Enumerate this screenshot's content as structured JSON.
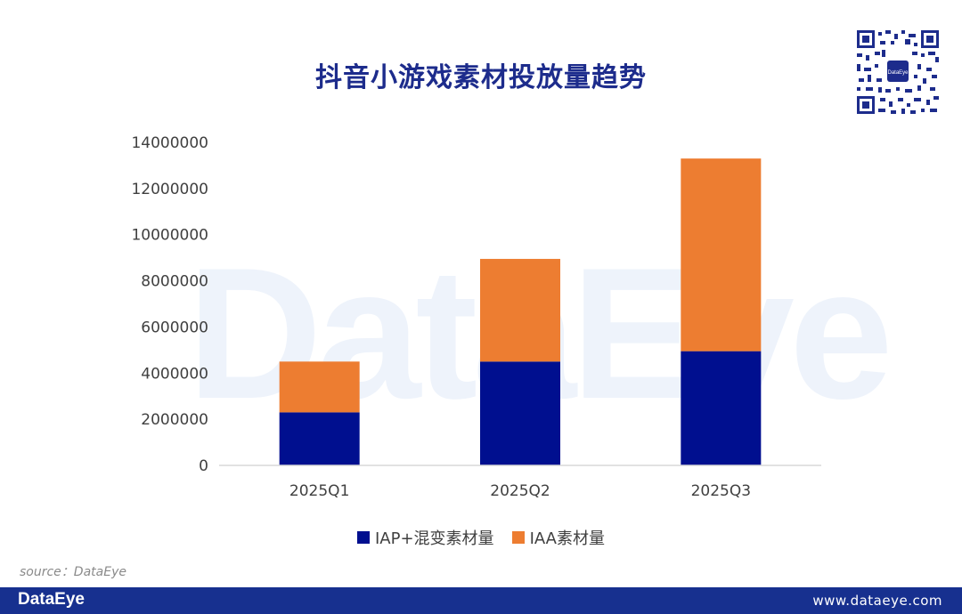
{
  "header": {
    "title": "抖音小游戏素材投放量趋势"
  },
  "watermark": {
    "text": "DataEye"
  },
  "qr": {
    "center_label": "DataEye"
  },
  "chart_data": {
    "type": "bar",
    "stacked": true,
    "title": "抖音小游戏素材投放量趋势",
    "categories": [
      "2025Q1",
      "2025Q2",
      "2025Q3"
    ],
    "series": [
      {
        "name": "IAP+混变素材量",
        "color": "#000f8f",
        "values": [
          2300000,
          4500000,
          4950000
        ]
      },
      {
        "name": "IAA素材量",
        "color": "#ed7d31",
        "values": [
          2200000,
          4450000,
          8350000
        ]
      }
    ],
    "ylim": [
      0,
      14000000
    ],
    "yticks": [
      "0",
      "2000000",
      "4000000",
      "6000000",
      "8000000",
      "10000000",
      "12000000",
      "14000000"
    ],
    "ytick_values": [
      0,
      2000000,
      4000000,
      6000000,
      8000000,
      10000000,
      12000000,
      14000000
    ],
    "grid": false,
    "legend": "bottom",
    "xlabel": "",
    "ylabel": ""
  },
  "legend": {
    "items": [
      {
        "label": "IAP+混变素材量",
        "color": "#000f8f"
      },
      {
        "label": "IAA素材量",
        "color": "#ed7d31"
      }
    ]
  },
  "source": {
    "text": "source：DataEye"
  },
  "footer": {
    "logo": "DataEye",
    "url": "www.dataeye.com"
  }
}
